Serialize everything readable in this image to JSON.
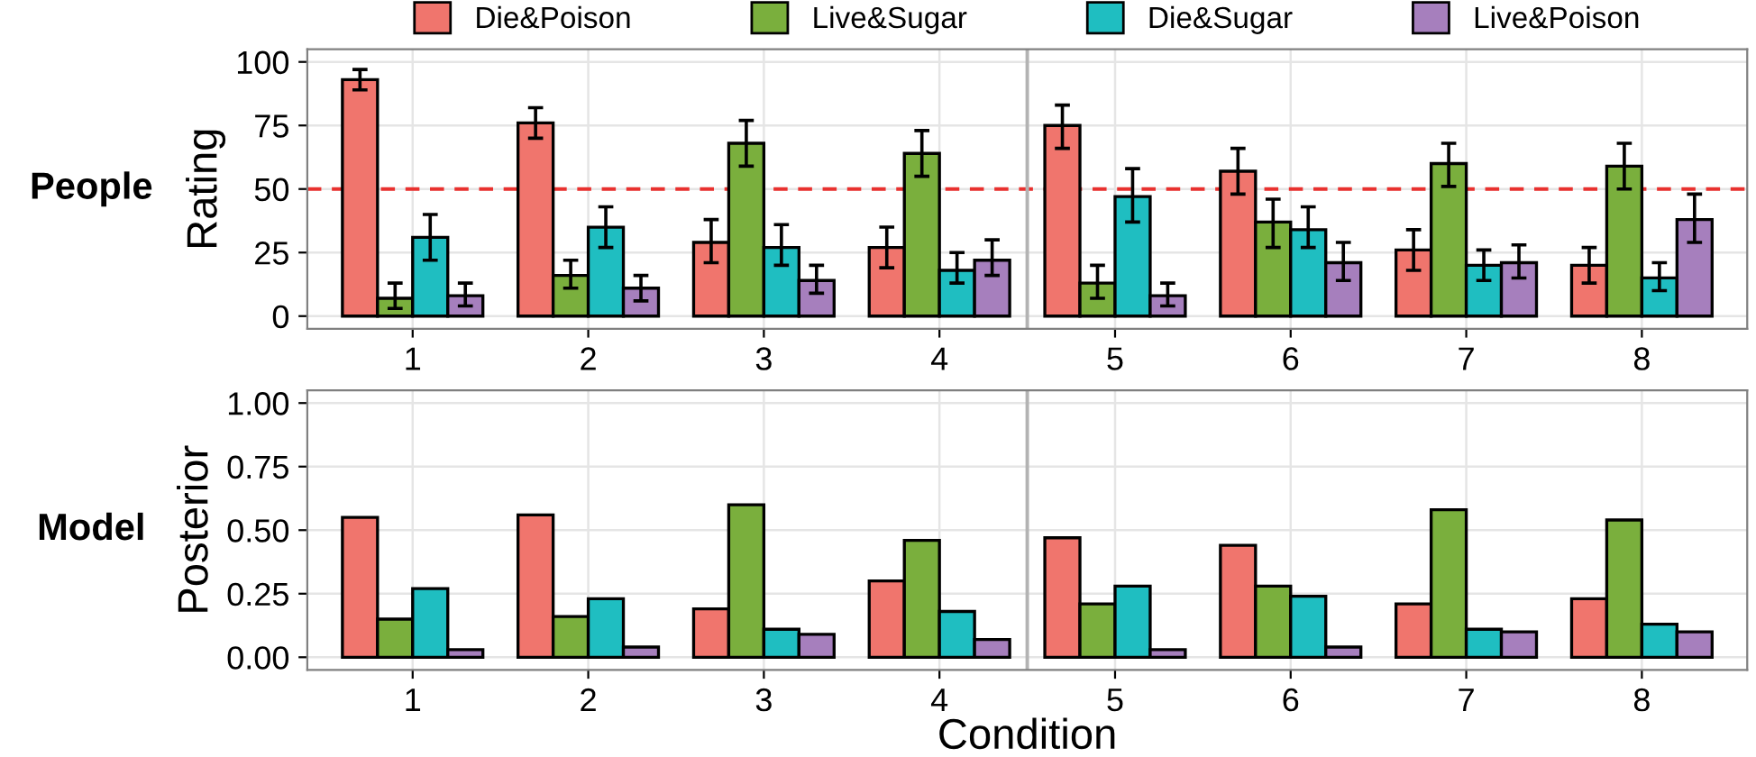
{
  "chart_data": [
    {
      "type": "bar",
      "title": "People",
      "ylabel": "Rating",
      "x": [
        1,
        2,
        3,
        4,
        5,
        6,
        7,
        8
      ],
      "xlim": [
        0.4,
        8.6
      ],
      "xticks": [
        1,
        2,
        3,
        4,
        5,
        6,
        7,
        8
      ],
      "ylim": [
        -5,
        105
      ],
      "yticks": [
        0,
        25,
        50,
        75,
        100
      ],
      "grid": true,
      "legend": "top",
      "ref_lines": [
        {
          "axis": "y",
          "value": 50,
          "color": "#e8312f",
          "line_style": "dashed"
        },
        {
          "axis": "x",
          "value": 4.5,
          "color": "#b3b3b3",
          "line_style": "solid"
        }
      ],
      "series": [
        {
          "name": "Die&Poison",
          "color": "#f0756d",
          "values": [
            93,
            76,
            29,
            27,
            75,
            57,
            26,
            20
          ],
          "errors": [
            [
              89,
              97
            ],
            [
              70,
              82
            ],
            [
              21,
              38
            ],
            [
              19,
              35
            ],
            [
              66,
              83
            ],
            [
              48,
              66
            ],
            [
              18,
              34
            ],
            [
              13,
              27
            ]
          ]
        },
        {
          "name": "Live&Sugar",
          "color": "#7aaf3d",
          "values": [
            7,
            16,
            68,
            64,
            13,
            37,
            60,
            59
          ],
          "errors": [
            [
              3,
              13
            ],
            [
              11,
              22
            ],
            [
              59,
              77
            ],
            [
              55,
              73
            ],
            [
              7,
              20
            ],
            [
              27,
              46
            ],
            [
              51,
              68
            ],
            [
              50,
              68
            ]
          ]
        },
        {
          "name": "Die&Sugar",
          "color": "#1fbec1",
          "values": [
            31,
            35,
            27,
            18,
            47,
            34,
            20,
            15
          ],
          "errors": [
            [
              22,
              40
            ],
            [
              27,
              43
            ],
            [
              20,
              36
            ],
            [
              13,
              25
            ],
            [
              37,
              58
            ],
            [
              27,
              43
            ],
            [
              14,
              26
            ],
            [
              10,
              21
            ]
          ]
        },
        {
          "name": "Live&Poison",
          "color": "#a67fbd",
          "values": [
            8,
            11,
            14,
            22,
            8,
            21,
            21,
            38
          ],
          "errors": [
            [
              4,
              13
            ],
            [
              6,
              16
            ],
            [
              9,
              20
            ],
            [
              16,
              30
            ],
            [
              4,
              13
            ],
            [
              14,
              29
            ],
            [
              15,
              28
            ],
            [
              29,
              48
            ]
          ]
        }
      ]
    },
    {
      "type": "bar",
      "title": "Model",
      "ylabel": "Posterior",
      "xlabel": "Condition",
      "x": [
        1,
        2,
        3,
        4,
        5,
        6,
        7,
        8
      ],
      "xlim": [
        0.4,
        8.6
      ],
      "xticks": [
        1,
        2,
        3,
        4,
        5,
        6,
        7,
        8
      ],
      "ylim": [
        -0.05,
        1.05
      ],
      "yticks": [
        {
          "value": 0,
          "label": "0.00"
        },
        {
          "value": 0.25,
          "label": "0.25"
        },
        {
          "value": 0.5,
          "label": "0.50"
        },
        {
          "value": 0.75,
          "label": "0.75"
        },
        {
          "value": 1,
          "label": "1.00"
        }
      ],
      "grid": true,
      "ref_lines": [
        {
          "axis": "x",
          "value": 4.5,
          "color": "#b3b3b3",
          "line_style": "solid"
        }
      ],
      "series": [
        {
          "color": "#f0756d",
          "values": [
            0.55,
            0.56,
            0.19,
            0.3,
            0.47,
            0.44,
            0.21,
            0.23
          ]
        },
        {
          "color": "#7aaf3d",
          "values": [
            0.15,
            0.16,
            0.6,
            0.46,
            0.21,
            0.28,
            0.58,
            0.54
          ]
        },
        {
          "color": "#1fbec1",
          "values": [
            0.27,
            0.23,
            0.11,
            0.18,
            0.28,
            0.24,
            0.11,
            0.13
          ]
        },
        {
          "color": "#a67fbd",
          "values": [
            0.03,
            0.04,
            0.09,
            0.07,
            0.03,
            0.04,
            0.1,
            0.1
          ]
        }
      ]
    }
  ]
}
